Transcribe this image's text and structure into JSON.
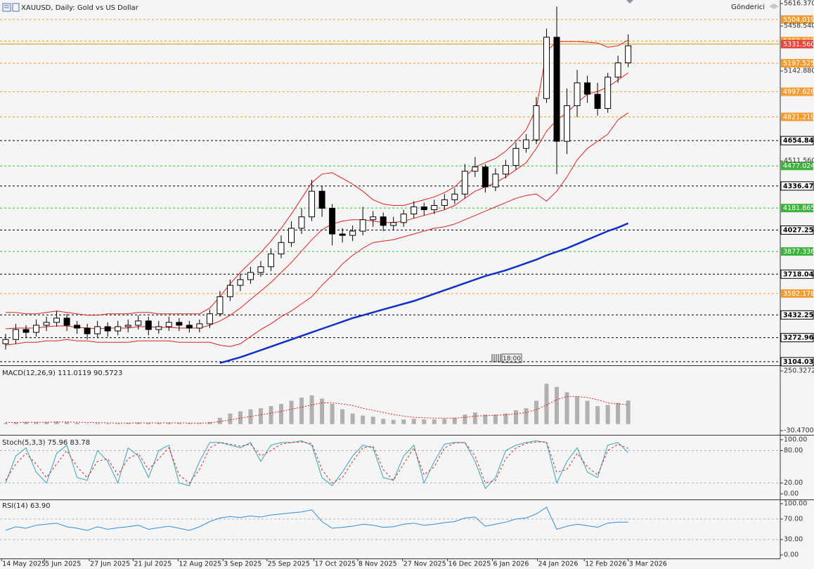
{
  "header": {
    "broker": "Gönderici"
  },
  "chart_data": [
    {
      "type": "candlestick",
      "title": "XAUUSD, Daily:  Gold vs US Dollar",
      "time_marker": "18:00",
      "xlim": [
        -0.55,
        75.9
      ],
      "ylim": [
        3079,
        5641
      ],
      "xticks": [
        {
          "value": -0.4,
          "label": "14 May 2025"
        },
        {
          "value": 3.8,
          "label": "5 Jun 2025"
        },
        {
          "value": 8.2,
          "label": "27 Jun 2025"
        },
        {
          "value": 12.5,
          "label": "21 Jul 2025"
        },
        {
          "value": 16.9,
          "label": "12 Aug 2025"
        },
        {
          "value": 21.3,
          "label": "3 Sep 2025"
        },
        {
          "value": 25.6,
          "label": "25 Sep 2025"
        },
        {
          "value": 30.2,
          "label": "17 Oct 2025"
        },
        {
          "value": 34.5,
          "label": "8 Nov 2025"
        },
        {
          "value": 38.9,
          "label": "27 Nov 2025"
        },
        {
          "value": 43.3,
          "label": "16 Dec 2025"
        },
        {
          "value": 47.7,
          "label": "6 Jan 2026"
        },
        {
          "value": 52.1,
          "label": "24 Jan 2026"
        },
        {
          "value": 56.7,
          "label": "12 Feb 2026"
        },
        {
          "value": 61,
          "label": "3 Mar 2026"
        }
      ],
      "yticks": [
        {
          "value": 5616.37,
          "label": "5616.370"
        },
        {
          "value": 5458.54,
          "label": "5458.540"
        },
        {
          "value": 5142.88,
          "label": "5142.880"
        },
        {
          "value": 4511.56,
          "label": "4511.560"
        }
      ],
      "up_color": "#ffffff",
      "down_color": "#000000",
      "wick_color": "#000000",
      "open": [
        3230,
        3260,
        3330,
        3310,
        3360,
        3380,
        3410,
        3360,
        3340,
        3300,
        3350,
        3320,
        3350,
        3360,
        3390,
        3330,
        3350,
        3380,
        3360,
        3340,
        3370,
        3440,
        3560,
        3640,
        3680,
        3730,
        3770,
        3860,
        3940,
        4040,
        4120,
        4300,
        4180,
        4000,
        3990,
        4020,
        4100,
        4120,
        4060,
        4080,
        4140,
        4190,
        4170,
        4200,
        4240,
        4280,
        4440,
        4470,
        4330,
        4420,
        4480,
        4600,
        4660,
        4950,
        5380,
        4650,
        4900,
        5060,
        4980,
        4880,
        5100,
        5200
      ],
      "high": [
        3300,
        3370,
        3360,
        3400,
        3420,
        3460,
        3440,
        3390,
        3370,
        3390,
        3380,
        3390,
        3400,
        3430,
        3420,
        3390,
        3420,
        3410,
        3390,
        3400,
        3470,
        3600,
        3680,
        3720,
        3770,
        3810,
        3900,
        3990,
        4090,
        4180,
        4380,
        4340,
        4210,
        4040,
        4060,
        4190,
        4160,
        4150,
        4120,
        4170,
        4230,
        4220,
        4240,
        4280,
        4320,
        4490,
        4540,
        4490,
        4460,
        4520,
        4640,
        4700,
        4960,
        5440,
        5595,
        5020,
        5150,
        5110,
        5060,
        5130,
        5250,
        5400
      ],
      "low": [
        3190,
        3230,
        3270,
        3280,
        3320,
        3350,
        3320,
        3300,
        3260,
        3270,
        3280,
        3290,
        3310,
        3330,
        3290,
        3300,
        3320,
        3320,
        3310,
        3310,
        3340,
        3420,
        3530,
        3600,
        3650,
        3700,
        3740,
        3830,
        3910,
        4000,
        4090,
        4120,
        3920,
        3940,
        3950,
        3990,
        4050,
        4020,
        4030,
        4050,
        4110,
        4130,
        4140,
        4170,
        4210,
        4250,
        4400,
        4290,
        4300,
        4390,
        4450,
        4570,
        4630,
        4920,
        4420,
        4560,
        4820,
        4920,
        4830,
        4850,
        5060,
        5170
      ],
      "close": [
        3260,
        3330,
        3310,
        3360,
        3380,
        3410,
        3360,
        3340,
        3300,
        3350,
        3320,
        3350,
        3360,
        3390,
        3330,
        3350,
        3380,
        3360,
        3340,
        3370,
        3440,
        3560,
        3640,
        3680,
        3730,
        3770,
        3860,
        3940,
        4040,
        4120,
        4300,
        4180,
        4000,
        3990,
        4020,
        4100,
        4120,
        4060,
        4080,
        4140,
        4190,
        4170,
        4200,
        4240,
        4280,
        4440,
        4470,
        4330,
        4420,
        4480,
        4600,
        4660,
        4900,
        5380,
        4650,
        4900,
        5060,
        4980,
        4880,
        5100,
        5200,
        5320
      ],
      "overlays": [
        {
          "color": "#e02020",
          "values": [
            3450,
            3450,
            3440,
            3440,
            3450,
            3460,
            3450,
            3440,
            3430,
            3430,
            3440,
            3440,
            3440,
            3450,
            3450,
            3440,
            3440,
            3440,
            3440,
            3440,
            3480,
            3560,
            3650,
            3730,
            3800,
            3870,
            3950,
            4040,
            4140,
            4250,
            4360,
            4420,
            4430,
            4390,
            4350,
            4300,
            4240,
            4210,
            4200,
            4200,
            4220,
            4240,
            4260,
            4290,
            4330,
            4400,
            4470,
            4500,
            4530,
            4580,
            4650,
            4730,
            4880,
            5280,
            5350,
            5350,
            5350,
            5345,
            5340,
            5310,
            5320,
            5360
          ]
        },
        {
          "color": "#e02020",
          "values": [
            3335,
            3340,
            3340,
            3340,
            3350,
            3355,
            3355,
            3345,
            3340,
            3335,
            3340,
            3340,
            3340,
            3350,
            3350,
            3345,
            3345,
            3340,
            3340,
            3340,
            3360,
            3390,
            3430,
            3480,
            3540,
            3600,
            3660,
            3730,
            3800,
            3880,
            3960,
            4030,
            4070,
            4090,
            4100,
            4100,
            4090,
            4080,
            4080,
            4090,
            4110,
            4130,
            4150,
            4170,
            4200,
            4250,
            4300,
            4330,
            4360,
            4400,
            4450,
            4500,
            4600,
            4720,
            4800,
            4850,
            4920,
            4980,
            5000,
            5030,
            5080,
            5130
          ]
        },
        {
          "color": "#e02020",
          "values": [
            3220,
            3230,
            3240,
            3240,
            3250,
            3250,
            3260,
            3250,
            3250,
            3240,
            3240,
            3240,
            3240,
            3250,
            3250,
            3250,
            3250,
            3240,
            3240,
            3240,
            3240,
            3220,
            3210,
            3230,
            3280,
            3330,
            3370,
            3420,
            3460,
            3510,
            3560,
            3640,
            3710,
            3790,
            3850,
            3900,
            3940,
            3950,
            3960,
            3980,
            4000,
            4020,
            4040,
            4050,
            4070,
            4100,
            4130,
            4160,
            4190,
            4220,
            4250,
            4270,
            4280,
            4230,
            4300,
            4400,
            4520,
            4600,
            4650,
            4700,
            4800,
            4850
          ]
        },
        {
          "color": "#1030c8",
          "width": 2.5,
          "values": [
            null,
            null,
            null,
            null,
            null,
            null,
            null,
            null,
            null,
            null,
            null,
            null,
            null,
            null,
            null,
            null,
            null,
            null,
            null,
            null,
            null,
            3095,
            3115,
            3135,
            3160,
            3185,
            3210,
            3235,
            3260,
            3285,
            3310,
            3335,
            3360,
            3385,
            3410,
            3430,
            3450,
            3470,
            3490,
            3510,
            3530,
            3555,
            3580,
            3605,
            3630,
            3655,
            3680,
            3705,
            3725,
            3745,
            3770,
            3795,
            3820,
            3850,
            3875,
            3900,
            3930,
            3960,
            3990,
            4020,
            4045,
            4075
          ]
        }
      ],
      "levels": [
        {
          "value": 5504.019,
          "color": "#f39c32",
          "dash": "dashed"
        },
        {
          "value": 5352.928,
          "color": "#f39c32",
          "dash": "dashed"
        },
        {
          "value": 5331.56,
          "label": "5331.560",
          "color": "#c89b00",
          "label_color": "#e8453c",
          "dash": "solid"
        },
        {
          "value": 5197.525,
          "color": "#f39c32",
          "dash": "dashed"
        },
        {
          "value": 4997.626,
          "color": "#f39c32",
          "dash": "dashed"
        },
        {
          "value": 4821.219,
          "color": "#f39c32",
          "dash": "dashed"
        },
        {
          "value": 4654.848,
          "color": "#000000",
          "dash": "dashed"
        },
        {
          "value": 4477.024,
          "color": "#3cb43c",
          "dash": "dashed"
        },
        {
          "value": 4336.472,
          "color": "#000000",
          "dash": "dashed"
        },
        {
          "value": 4181.865,
          "color": "#3cb43c",
          "dash": "dashed"
        },
        {
          "value": 4027.258,
          "color": "#000000",
          "dash": "dashed"
        },
        {
          "value": 3877.336,
          "color": "#3cb43c",
          "dash": "dashed"
        },
        {
          "value": 3718.044,
          "color": "#000000",
          "dash": "dashed"
        },
        {
          "value": 3582.178,
          "color": "#f39c32",
          "dash": "dashed"
        },
        {
          "value": 3432.256,
          "color": "#000000",
          "dash": "dashed"
        },
        {
          "value": 3272.964,
          "color": "#000000",
          "dash": "dashed"
        },
        {
          "value": 3104.032,
          "color": "#000000",
          "dash": "dashed"
        }
      ]
    },
    {
      "type": "combo",
      "title": "MACD(12,26,9) 111.0119 90.5723",
      "ylim": [
        -30.47,
        250.3272
      ],
      "yticks": [
        250.3272,
        {
          "value": -30.47,
          "label": "-30.4700"
        }
      ],
      "series": [
        {
          "kind": "bar",
          "color": "#b0b0b0",
          "values": [
            5,
            8,
            10,
            8,
            10,
            12,
            10,
            6,
            2,
            4,
            3,
            4,
            5,
            8,
            6,
            5,
            6,
            5,
            4,
            4,
            10,
            30,
            50,
            60,
            70,
            75,
            85,
            95,
            110,
            125,
            135,
            120,
            95,
            70,
            50,
            40,
            35,
            25,
            20,
            22,
            25,
            22,
            22,
            25,
            30,
            45,
            55,
            45,
            45,
            50,
            65,
            75,
            110,
            190,
            175,
            150,
            130,
            110,
            85,
            90,
            100,
            111
          ]
        },
        {
          "kind": "line",
          "color": "#e02020",
          "dash": "dotted",
          "values": [
            8,
            8,
            9,
            9,
            9,
            10,
            10,
            9,
            8,
            7,
            6,
            5,
            5,
            6,
            6,
            6,
            6,
            6,
            5,
            5,
            6,
            12,
            20,
            28,
            36,
            44,
            52,
            60,
            70,
            80,
            90,
            100,
            100,
            95,
            88,
            75,
            65,
            55,
            45,
            38,
            32,
            30,
            28,
            28,
            28,
            32,
            38,
            40,
            42,
            44,
            48,
            55,
            68,
            90,
            115,
            130,
            130,
            125,
            115,
            100,
            95,
            91
          ]
        }
      ]
    },
    {
      "type": "line",
      "title": "Stoch(5,3,3) 75.96 83.78",
      "ylim": [
        0,
        100
      ],
      "yticks": [
        {
          "value": 100,
          "label": "100.00"
        },
        {
          "value": 80,
          "label": "80.00"
        },
        {
          "value": 20,
          "label": "20.00"
        },
        {
          "value": 0,
          "label": "0.00"
        }
      ],
      "levels": [
        80,
        20
      ],
      "level_color": "#b0b0b0",
      "series": [
        {
          "color": "#31a8b8",
          "values": [
            20,
            70,
            85,
            40,
            20,
            75,
            90,
            30,
            25,
            80,
            60,
            20,
            85,
            70,
            30,
            80,
            90,
            20,
            15,
            60,
            95,
            95,
            90,
            85,
            95,
            60,
            90,
            95,
            95,
            98,
            90,
            30,
            15,
            40,
            70,
            90,
            85,
            30,
            25,
            70,
            90,
            20,
            60,
            92,
            95,
            95,
            60,
            10,
            30,
            80,
            90,
            95,
            98,
            95,
            20,
            60,
            85,
            40,
            30,
            90,
            95,
            76
          ]
        },
        {
          "color": "#e02020",
          "dash": "dashed",
          "values": [
            25,
            55,
            75,
            55,
            30,
            55,
            80,
            50,
            30,
            60,
            65,
            35,
            65,
            75,
            45,
            65,
            85,
            35,
            20,
            45,
            85,
            95,
            92,
            88,
            92,
            70,
            80,
            92,
            95,
            96,
            93,
            45,
            20,
            30,
            60,
            85,
            88,
            45,
            25,
            55,
            85,
            35,
            50,
            85,
            94,
            95,
            70,
            20,
            25,
            65,
            85,
            93,
            96,
            96,
            40,
            45,
            75,
            50,
            35,
            80,
            92,
            84
          ]
        }
      ]
    },
    {
      "type": "line",
      "title": "RSI(14) 63.90",
      "ylim": [
        0,
        100
      ],
      "yticks": [
        {
          "value": 100,
          "label": "100.00"
        },
        {
          "value": 70,
          "label": "70.00"
        },
        {
          "value": 30,
          "label": "30.00"
        },
        {
          "value": 0,
          "label": "0.00"
        }
      ],
      "levels": [
        70,
        30
      ],
      "level_color": "#b0b0b0",
      "series": [
        {
          "color": "#2f8fdf",
          "values": [
            48,
            55,
            52,
            58,
            60,
            62,
            55,
            52,
            48,
            55,
            50,
            53,
            55,
            58,
            50,
            53,
            56,
            52,
            48,
            55,
            65,
            72,
            75,
            73,
            76,
            74,
            78,
            80,
            82,
            84,
            88,
            65,
            52,
            54,
            56,
            60,
            58,
            54,
            55,
            60,
            62,
            58,
            60,
            63,
            65,
            72,
            74,
            56,
            60,
            64,
            70,
            72,
            80,
            93,
            50,
            56,
            60,
            57,
            54,
            62,
            64,
            64
          ]
        }
      ]
    }
  ]
}
